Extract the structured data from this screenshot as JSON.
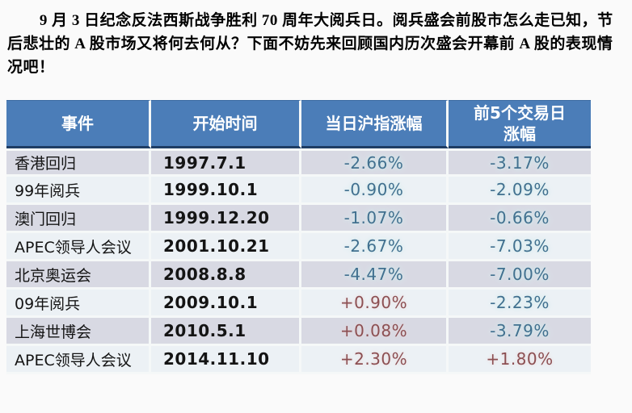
{
  "article": {
    "paragraph": "9 月 3 日纪念反法西斯战争胜利 70 周年大阅兵日。阅兵盛会前股市怎么走已知，节后悲壮的 A 股市场又将何去何从？下面不妨先来回顾国内历次盛会开幕前 A 股的表现情况吧！"
  },
  "table": {
    "headers": [
      "事件",
      "开始时间",
      "当日沪指涨幅",
      "前5个交易日\n涨幅"
    ],
    "rows": [
      {
        "event": "香港回归",
        "date": "1997.7.1",
        "day_change": "-2.66%",
        "pre5_change": "-3.17%"
      },
      {
        "event": "99年阅兵",
        "date": "1999.10.1",
        "day_change": "-0.90%",
        "pre5_change": "-2.09%"
      },
      {
        "event": "澳门回归",
        "date": "1999.12.20",
        "day_change": "-1.07%",
        "pre5_change": "-0.66%"
      },
      {
        "event": "APEC领导人会议",
        "date": "2001.10.21",
        "day_change": "-2.67%",
        "pre5_change": "-7.03%"
      },
      {
        "event": "北京奥运会",
        "date": "2008.8.8",
        "day_change": "-4.47%",
        "pre5_change": "-7.00%"
      },
      {
        "event": "09年阅兵",
        "date": "2009.10.1",
        "day_change": "+0.90%",
        "pre5_change": "-2.23%"
      },
      {
        "event": "上海世博会",
        "date": "2010.5.1",
        "day_change": "+0.08%",
        "pre5_change": "-3.79%"
      },
      {
        "event": "APEC领导人会议",
        "date": "2014.11.10",
        "day_change": "+2.30%",
        "pre5_change": "+1.80%"
      }
    ]
  },
  "colors": {
    "page_bg": "#fafafa",
    "header_bg": "#4b7db8",
    "header_text": "#ffffff",
    "navy": "#1e3c64",
    "gap": "#f5f8f8",
    "row_odd_bg": "#d8d9e3",
    "row_even_bg": "#ecf1f5",
    "negative_text": "#41708f",
    "positive_text": "#8c4f52"
  }
}
